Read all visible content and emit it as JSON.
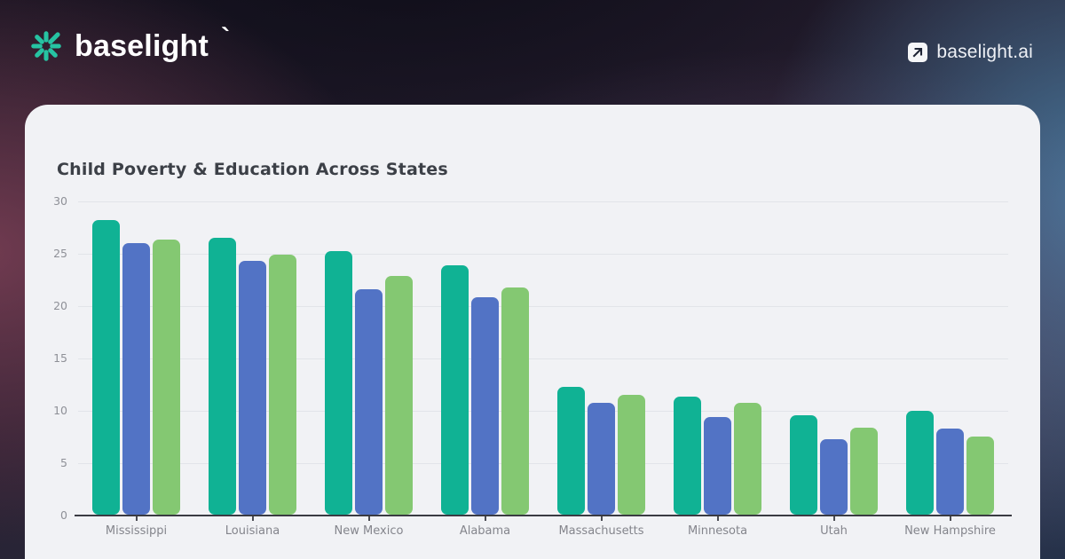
{
  "header": {
    "logo_text": "baselight",
    "logo_mark": "`",
    "site_label": "baselight.ai"
  },
  "colors": {
    "brand_teal": "#26c3a2",
    "card_bg": "#f1f2f5",
    "title_text": "#3c4047",
    "axis_text": "#8e9097",
    "gridline": "#e2e4e9",
    "axis_line": "#3a3b42"
  },
  "chart_data": {
    "type": "bar",
    "title": "Child Poverty & Education Across States",
    "categories": [
      "Mississippi",
      "Louisiana",
      "New Mexico",
      "Alabama",
      "Massachusetts",
      "Minnesota",
      "Utah",
      "New Hampshire"
    ],
    "series": [
      {
        "name": "teal",
        "color": "#10b294",
        "values": [
          28.1,
          26.4,
          25.2,
          23.8,
          12.2,
          11.3,
          9.5,
          9.9
        ]
      },
      {
        "name": "blue",
        "color": "#5273c5",
        "values": [
          25.9,
          24.2,
          21.5,
          20.8,
          10.7,
          9.3,
          7.2,
          8.2
        ]
      },
      {
        "name": "green",
        "color": "#84c872",
        "values": [
          26.3,
          24.8,
          22.8,
          21.7,
          11.4,
          10.7,
          8.3,
          7.5
        ]
      }
    ],
    "xlabel": "",
    "ylabel": "",
    "ylim": [
      0,
      30
    ],
    "yticks": [
      0,
      5,
      10,
      15,
      20,
      25,
      30
    ],
    "grid": true,
    "legend_position": "none"
  }
}
